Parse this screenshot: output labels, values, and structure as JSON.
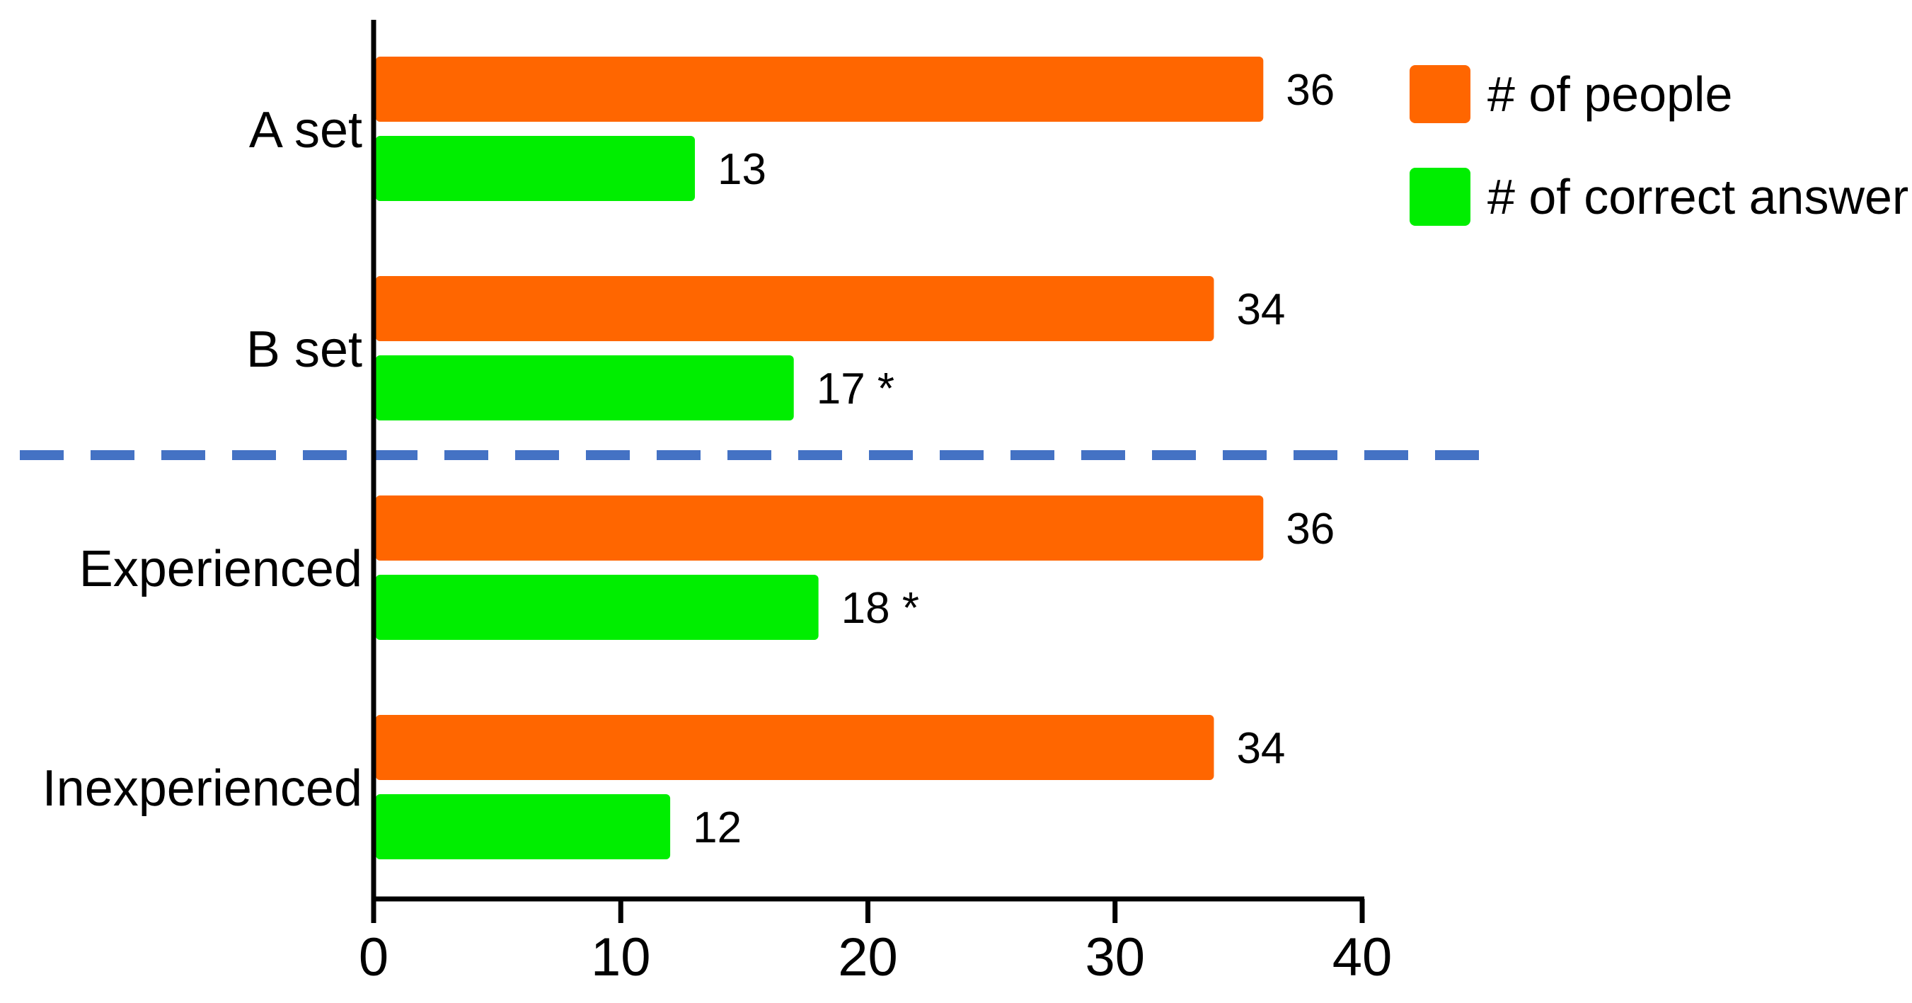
{
  "chart_data": {
    "type": "bar",
    "orientation": "horizontal",
    "categories": [
      "A set",
      "B set",
      "Experienced",
      "Inexperienced"
    ],
    "series": [
      {
        "name": "# of people",
        "color": "#ff6600",
        "values": [
          36,
          34,
          36,
          34
        ],
        "labels": [
          "36",
          "34",
          "36",
          "34"
        ]
      },
      {
        "name": "# of correct answer",
        "color": "#00ee00",
        "values": [
          13,
          17,
          18,
          12
        ],
        "labels": [
          "13",
          "17 *",
          "18  *",
          "12"
        ]
      }
    ],
    "xlim": [
      0,
      40
    ],
    "xticks": [
      "0",
      "10",
      "20",
      "30",
      "40"
    ],
    "xlabel": "",
    "ylabel": "",
    "title": "",
    "grid": false,
    "legend": "top-right",
    "separator": {
      "after_category": "B set",
      "style": "dashed",
      "color": "#4472c4"
    }
  }
}
